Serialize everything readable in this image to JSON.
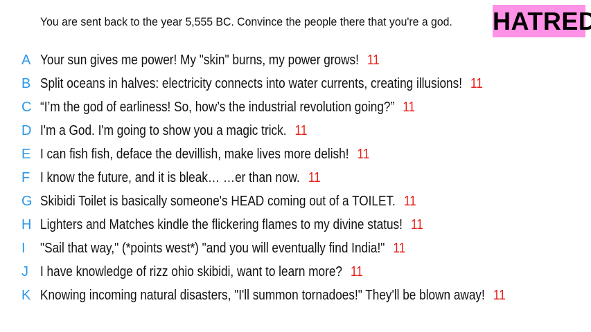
{
  "prompt": "You are sent back to the year 5,555 BC. Convince the people there that you're a god.",
  "badge": {
    "label": "HATRED",
    "color": "#ff91e6"
  },
  "answers": [
    {
      "letter": "A",
      "text": "Your sun gives me power! My \"skin\" burns, my power grows!",
      "score": "11"
    },
    {
      "letter": "B",
      "text": "Split oceans in halves: electricity connects into water currents, creating illusions!",
      "score": "11"
    },
    {
      "letter": "C",
      "text": "“I’m the god of earliness! So, how’s the industrial revolution going?”",
      "score": "11"
    },
    {
      "letter": "D",
      "text": "I'm a God. I'm going to show you a magic trick.",
      "score": "11"
    },
    {
      "letter": "E",
      "text": "I can fish fish, deface the devillish, make lives more delish!",
      "score": "11"
    },
    {
      "letter": "F",
      "text": "I know the future, and it is bleak… …er than now.",
      "score": "11"
    },
    {
      "letter": "G",
      "text": "Skibidi Toilet is basically someone's HEAD coming out of a TOILET.",
      "score": "11"
    },
    {
      "letter": "H",
      "text": "Lighters and Matches kindle the flickering flames to my divine status!",
      "score": "11"
    },
    {
      "letter": "I",
      "text": "\"Sail that way,\" (*points west*) \"and you will eventually find India!\"",
      "score": "11"
    },
    {
      "letter": "J",
      "text": "I have knowledge of rizz ohio skibidi, want to learn more?",
      "score": "11"
    },
    {
      "letter": "K",
      "text": "Knowing incoming natural disasters, \"I'll summon tornadoes!\" They'll be blown away!",
      "score": "11"
    }
  ],
  "colors": {
    "letter": "#2a97ea",
    "score": "#e8201a",
    "text": "#111111"
  }
}
